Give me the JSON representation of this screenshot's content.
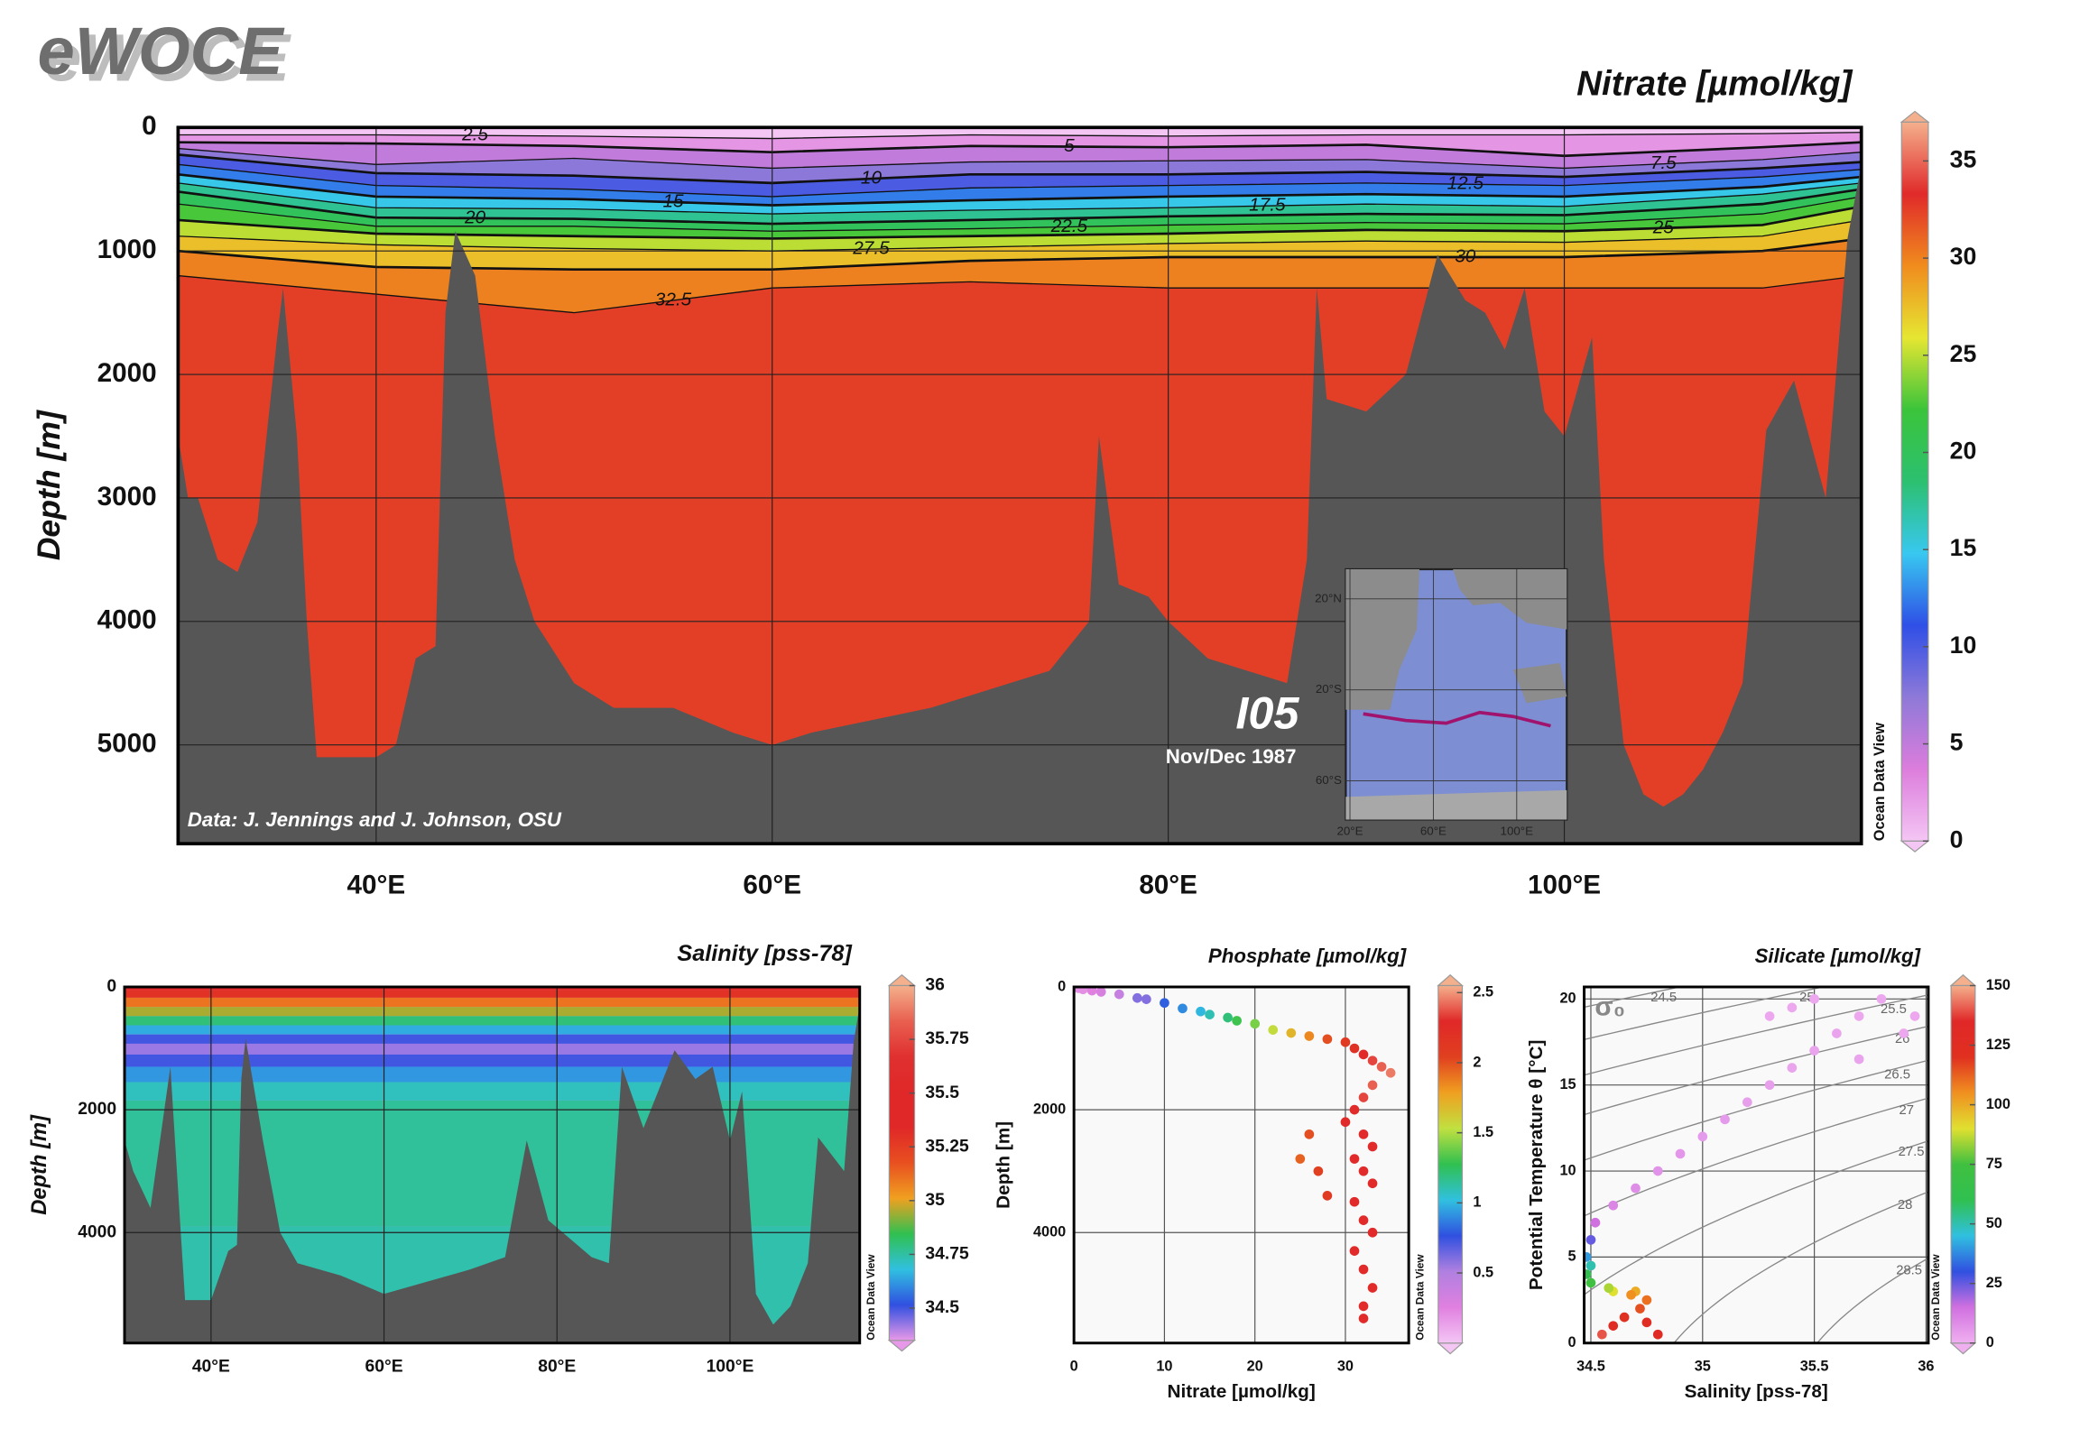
{
  "logo": "eWOCE",
  "chart_data": [
    {
      "type": "section",
      "title": "Nitrate [µmol/kg]",
      "ylabel": "Depth [m]",
      "watermark": "Ocean Data View",
      "xlim": [
        30,
        115
      ],
      "xticks": [
        {
          "value": 40,
          "label": "40°E"
        },
        {
          "value": 60,
          "label": "60°E"
        },
        {
          "value": 80,
          "label": "80°E"
        },
        {
          "value": 100,
          "label": "100°E"
        }
      ],
      "ylim": [
        0,
        5800
      ],
      "yticks": [
        0,
        1000,
        2000,
        3000,
        4000,
        5000
      ],
      "yreverse": true,
      "grid": true,
      "colorbar": {
        "lim": [
          0,
          37
        ],
        "ticks": [
          0,
          5,
          10,
          15,
          20,
          25,
          30,
          35
        ],
        "colors": [
          "#f4c6f4",
          "#dc7ddc",
          "#8e79d8",
          "#2f4fe6",
          "#38c8f0",
          "#2cc070",
          "#3bc43b",
          "#e6e632",
          "#f08c1e",
          "#e02a2a",
          "#f4b08c"
        ]
      },
      "contours_x": [
        30,
        40,
        50,
        60,
        70,
        80,
        90,
        100,
        110,
        115
      ],
      "contours": [
        {
          "level": 2.5,
          "depth": [
            60,
            60,
            70,
            90,
            60,
            70,
            60,
            60,
            50,
            40
          ]
        },
        {
          "level": 5,
          "depth": [
            120,
            130,
            150,
            200,
            150,
            160,
            140,
            230,
            160,
            120
          ]
        },
        {
          "level": 7.5,
          "depth": [
            170,
            300,
            250,
            330,
            280,
            270,
            260,
            330,
            260,
            200
          ]
        },
        {
          "level": 10,
          "depth": [
            220,
            370,
            390,
            450,
            380,
            380,
            360,
            400,
            330,
            280
          ]
        },
        {
          "level": 12.5,
          "depth": [
            300,
            470,
            500,
            560,
            490,
            470,
            450,
            470,
            400,
            340
          ]
        },
        {
          "level": 15,
          "depth": [
            380,
            560,
            580,
            630,
            590,
            560,
            540,
            560,
            480,
            400
          ]
        },
        {
          "level": 17.5,
          "depth": [
            450,
            650,
            660,
            700,
            670,
            650,
            620,
            640,
            540,
            450
          ]
        },
        {
          "level": 20,
          "depth": [
            520,
            730,
            740,
            780,
            750,
            720,
            700,
            710,
            620,
            500
          ]
        },
        {
          "level": 22.5,
          "depth": [
            620,
            800,
            800,
            840,
            820,
            790,
            770,
            780,
            700,
            560
          ]
        },
        {
          "level": 25,
          "depth": [
            750,
            860,
            880,
            900,
            880,
            860,
            830,
            840,
            790,
            640
          ]
        },
        {
          "level": 27.5,
          "depth": [
            880,
            950,
            980,
            1000,
            970,
            940,
            920,
            930,
            880,
            750
          ]
        },
        {
          "level": 30,
          "depth": [
            1000,
            1130,
            1150,
            1150,
            1080,
            1050,
            1050,
            1050,
            1000,
            900
          ]
        },
        {
          "level": 32.5,
          "depth": [
            1200,
            1350,
            1500,
            1300,
            1250,
            1300,
            1300,
            1300,
            1300,
            1200
          ]
        }
      ],
      "bathymetry": {
        "x": [
          30,
          30.5,
          31,
          32,
          33,
          34,
          35,
          35.3,
          36,
          36.5,
          37,
          38,
          40,
          41,
          42,
          43,
          43.5,
          44,
          45,
          46,
          47,
          48,
          50,
          52,
          55,
          58,
          60,
          62,
          65,
          68,
          70,
          72,
          74,
          76,
          76.5,
          77.5,
          79,
          80,
          82,
          84,
          86,
          87,
          87.5,
          88,
          90,
          92,
          93.6,
          95,
          96,
          97,
          98,
          99,
          100,
          101.4,
          102,
          103,
          104,
          105,
          106,
          107,
          108,
          109,
          110.2,
          111.6,
          113.2,
          114.3,
          115
        ],
        "depth": [
          2500,
          3000,
          3000,
          3500,
          3600,
          3200,
          1700,
          1300,
          2500,
          4000,
          5100,
          5100,
          5100,
          5000,
          4300,
          4200,
          1500,
          840,
          1200,
          2500,
          3500,
          4000,
          4500,
          4700,
          4700,
          4900,
          5000,
          4900,
          4800,
          4700,
          4600,
          4500,
          4400,
          4000,
          2500,
          3700,
          3800,
          4000,
          4300,
          4400,
          4500,
          3500,
          1300,
          2200,
          2300,
          2000,
          1030,
          1400,
          1500,
          1800,
          1300,
          2300,
          2500,
          1700,
          3500,
          5000,
          5400,
          5500,
          5400,
          5200,
          4900,
          4500,
          2450,
          2050,
          3000,
          900,
          300
        ]
      },
      "annotations": {
        "source": "Data: J. Jennings and J. Johnson, OSU",
        "cruise": "I05",
        "date": "Nov/Dec 1987"
      },
      "inset": {
        "xlim": [
          18,
          124
        ],
        "ylim": [
          -77,
          33
        ],
        "xticks": [
          {
            "value": 20,
            "label": "20°E"
          },
          {
            "value": 60,
            "label": "60°E"
          },
          {
            "value": 100,
            "label": "100°E"
          }
        ],
        "yticks": [
          {
            "value": 20,
            "label": "20°N"
          },
          {
            "value": -20,
            "label": "20°S"
          },
          {
            "value": -60,
            "label": "60°S"
          }
        ]
      }
    },
    {
      "type": "section",
      "title": "Salinity [pss-78]",
      "ylabel": "Depth [m]",
      "watermark": "Ocean Data View",
      "xlim": [
        30,
        115
      ],
      "xticks": [
        {
          "value": 40,
          "label": "40°E"
        },
        {
          "value": 60,
          "label": "60°E"
        },
        {
          "value": 80,
          "label": "80°E"
        },
        {
          "value": 100,
          "label": "100°E"
        }
      ],
      "ylim": [
        0,
        5800
      ],
      "yticks": [
        0,
        2000,
        4000
      ],
      "yreverse": true,
      "grid": true,
      "colorbar": {
        "lim": [
          34.35,
          36
        ],
        "ticks": [
          34.5,
          34.75,
          35,
          35.25,
          35.5,
          35.75,
          36
        ],
        "colors": [
          "#e898e8",
          "#3050e0",
          "#30c0e0",
          "#30c050",
          "#f0a020",
          "#e85020",
          "#e02828",
          "#e02828",
          "#e03030",
          "#e86050",
          "#f4b08c"
        ]
      },
      "profile": {
        "depth": [
          0,
          100,
          250,
          400,
          550,
          700,
          850,
          1000,
          1200,
          1400,
          1700,
          2000,
          5800
        ],
        "values": [
          35.4,
          35.3,
          35.1,
          34.95,
          34.8,
          34.65,
          34.5,
          34.42,
          34.5,
          34.62,
          34.72,
          34.76,
          34.74
        ]
      },
      "bathymetry": {
        "x": [
          30,
          31,
          33,
          35.3,
          36.5,
          37,
          40,
          42,
          43,
          43.5,
          44,
          46,
          48,
          50,
          55,
          60,
          65,
          70,
          74,
          76.5,
          79,
          84,
          86,
          87.5,
          90,
          93.6,
          96,
          98,
          100,
          101.4,
          103,
          105,
          107,
          109,
          110.2,
          113.2,
          114.3,
          115
        ],
        "depth": [
          2500,
          3000,
          3600,
          1300,
          4000,
          5100,
          5100,
          4300,
          4200,
          1500,
          840,
          2500,
          4000,
          4500,
          4700,
          5000,
          4800,
          4600,
          4400,
          2500,
          3800,
          4400,
          4500,
          1300,
          2300,
          1030,
          1500,
          1300,
          2500,
          1700,
          5000,
          5500,
          5200,
          4500,
          2450,
          3000,
          900,
          300
        ]
      }
    },
    {
      "type": "scatter",
      "title": "Phosphate [µmol/kg]",
      "xlabel": "Nitrate [µmol/kg]",
      "ylabel": "Depth [m]",
      "watermark": "Ocean Data View",
      "xlim": [
        0,
        37
      ],
      "xticks": [
        0,
        10,
        20,
        30
      ],
      "ylim": [
        0,
        5800
      ],
      "yticks": [
        0,
        2000,
        4000
      ],
      "yreverse": true,
      "grid": true,
      "colorbar": {
        "lim": [
          0,
          2.55
        ],
        "ticks": [
          0.5,
          1,
          1.5,
          2,
          2.5
        ],
        "colors": [
          "#f4c6f4",
          "#e080e0",
          "#b080e0",
          "#3050e0",
          "#30c0e0",
          "#30c050",
          "#c0e040",
          "#f0a020",
          "#e04020",
          "#e02828",
          "#f4b08c"
        ]
      },
      "x": [
        0.5,
        1,
        2,
        3,
        5,
        7,
        8,
        10,
        12,
        14,
        15,
        17,
        18,
        20,
        22,
        24,
        26,
        28,
        30,
        31,
        32,
        33,
        34,
        35,
        33,
        32,
        31,
        30,
        32,
        33,
        31,
        32,
        33,
        31,
        32,
        33,
        31,
        32,
        33,
        32,
        32,
        26,
        25,
        27,
        28
      ],
      "y": [
        20,
        40,
        60,
        80,
        120,
        180,
        200,
        260,
        350,
        400,
        450,
        500,
        550,
        600,
        700,
        750,
        800,
        850,
        900,
        1000,
        1100,
        1200,
        1300,
        1400,
        1600,
        1800,
        2000,
        2200,
        2400,
        2600,
        2800,
        3000,
        3200,
        3500,
        3800,
        4000,
        4300,
        4600,
        4900,
        5200,
        5400,
        2400,
        2800,
        3000,
        3400
      ],
      "c": [
        0.2,
        0.2,
        0.25,
        0.3,
        0.4,
        0.6,
        0.6,
        0.8,
        0.9,
        1,
        1.1,
        1.2,
        1.3,
        1.4,
        1.55,
        1.7,
        1.85,
        2,
        2.1,
        2.2,
        2.3,
        2.35,
        2.4,
        2.45,
        2.4,
        2.35,
        2.3,
        2.3,
        2.3,
        2.3,
        2.3,
        2.3,
        2.3,
        2.3,
        2.3,
        2.3,
        2.3,
        2.3,
        2.3,
        2.3,
        2.3,
        2,
        1.95,
        2.05,
        2.1
      ]
    },
    {
      "type": "scatter",
      "title": "Silicate [µmol/kg]",
      "xlabel": "Salinity [pss-78]",
      "ylabel": "Potential Temperature θ [°C]",
      "watermark": "Ocean Data View",
      "xlim": [
        34.47,
        36.01
      ],
      "xticks": [
        34.5,
        35,
        35.5,
        36
      ],
      "ylim": [
        0,
        20.7
      ],
      "yticks": [
        0,
        5,
        10,
        15,
        20
      ],
      "grid": true,
      "isopycnal_symbol": "σ₀",
      "isopycnals": [
        24.5,
        25,
        25.5,
        26,
        26.5,
        27,
        27.5,
        28,
        28.5
      ],
      "colorbar": {
        "lim": [
          0,
          150
        ],
        "ticks": [
          0,
          25,
          50,
          75,
          100,
          125,
          150
        ],
        "colors": [
          "#f0b0f0",
          "#d070e0",
          "#3050e0",
          "#30c0e0",
          "#30c050",
          "#40c040",
          "#e0e030",
          "#f09020",
          "#e03020",
          "#e02828",
          "#f4b08c"
        ]
      },
      "x": [
        34.55,
        34.6,
        34.65,
        34.72,
        34.75,
        34.7,
        34.6,
        34.5,
        34.48,
        34.48,
        34.5,
        34.52,
        34.6,
        34.7,
        34.8,
        34.9,
        35,
        35.1,
        35.2,
        35.3,
        35.4,
        35.5,
        35.6,
        35.7,
        35.8,
        35.5,
        35.3,
        35.9,
        35.7,
        34.8,
        34.75,
        34.68,
        34.58,
        34.5,
        35.4,
        35.95
      ],
      "y": [
        0.5,
        1,
        1.5,
        2,
        2.5,
        3,
        3,
        3.5,
        4,
        5,
        6,
        7,
        8,
        9,
        10,
        11,
        12,
        13,
        14,
        15,
        16,
        17,
        18,
        19,
        20,
        20,
        19,
        18,
        16.5,
        0.5,
        1.2,
        2.8,
        3.2,
        4.5,
        19.5,
        19
      ],
      "c": [
        140,
        130,
        120,
        115,
        110,
        100,
        90,
        75,
        60,
        40,
        25,
        15,
        10,
        8,
        7,
        6,
        5,
        5,
        4,
        4,
        3,
        3,
        3,
        2,
        2,
        2,
        2,
        2,
        3,
        130,
        125,
        105,
        85,
        50,
        2,
        2
      ]
    }
  ]
}
